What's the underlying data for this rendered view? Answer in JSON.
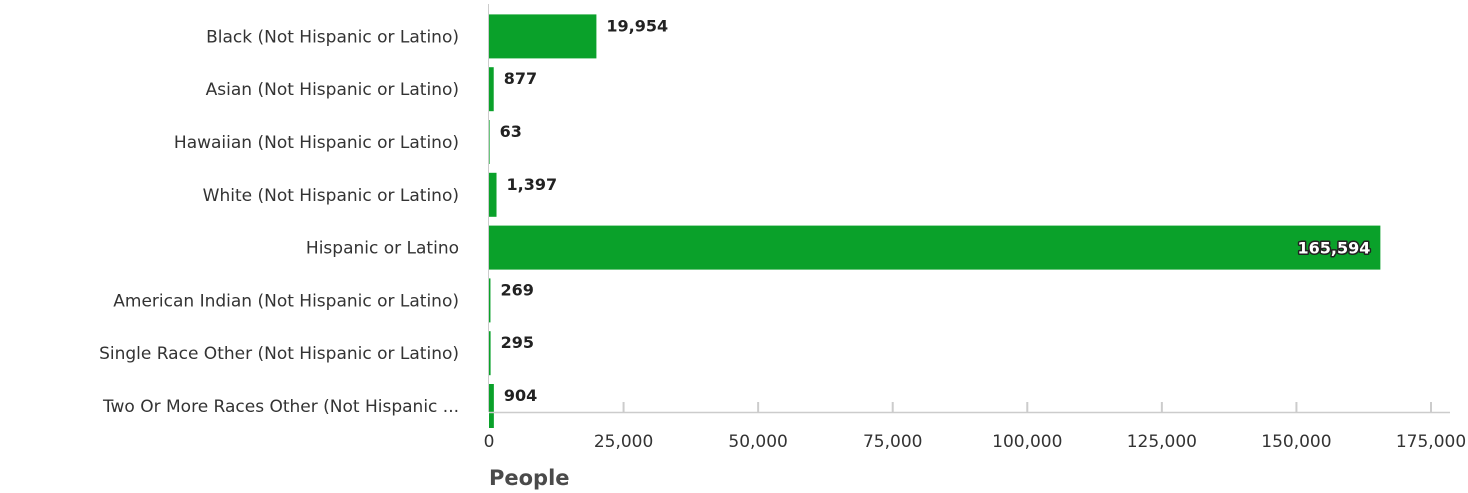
{
  "chart_data": {
    "type": "bar",
    "orientation": "horizontal",
    "categories": [
      "Black (Not Hispanic or Latino)",
      "Asian (Not Hispanic or Latino)",
      "Hawaiian (Not Hispanic or Latino)",
      "White (Not Hispanic or Latino)",
      "Hispanic or Latino",
      "American Indian (Not Hispanic or Latino)",
      "Single Race Other (Not Hispanic or Latino)",
      "Two Or More Races Other (Not Hispanic ..."
    ],
    "values": [
      19954,
      877,
      63,
      1397,
      165594,
      269,
      295,
      904
    ],
    "data_labels": [
      "19,954",
      "877",
      "63",
      "1,397",
      "165,594",
      "269",
      "295",
      "904"
    ],
    "xlabel": "People",
    "ylabel": "",
    "xlim": [
      0,
      175000
    ],
    "x_ticks": [
      0,
      25000,
      50000,
      75000,
      100000,
      125000,
      150000,
      175000
    ],
    "x_tick_labels": [
      "0",
      "25,000",
      "50,000",
      "75,000",
      "100,000",
      "125,000",
      "150,000",
      "175,000"
    ],
    "grid": false,
    "legend": "none",
    "colors": {
      "bar": "#0aa12a",
      "axis": "#cccccc",
      "text": "#333333"
    }
  }
}
